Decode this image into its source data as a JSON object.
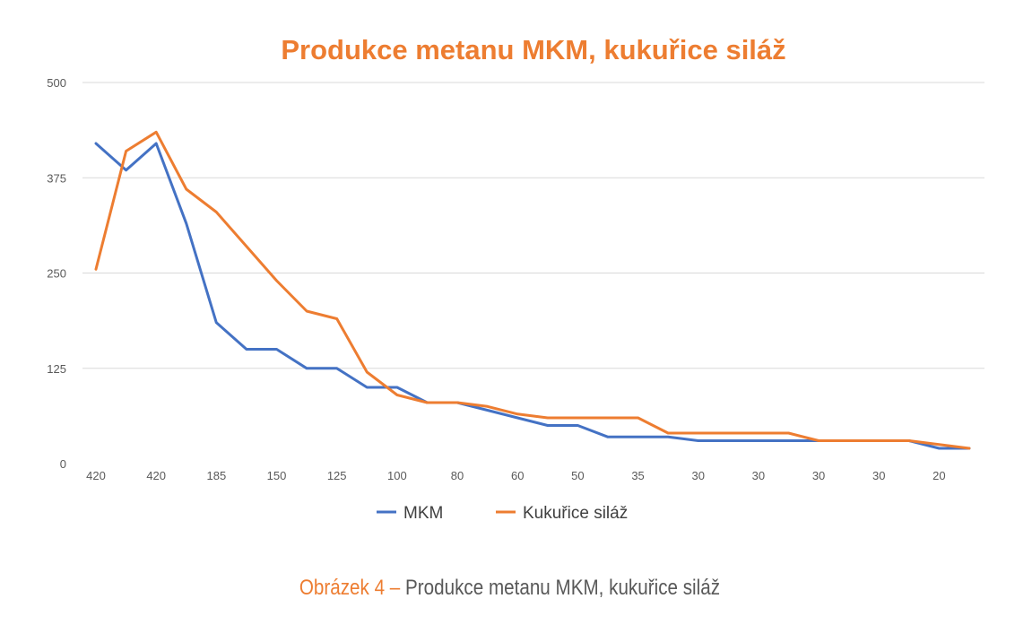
{
  "chart_data": {
    "type": "line",
    "title": "Produkce metanu MKM, kukuřice siláž",
    "xlabel": "",
    "ylabel": "",
    "ylim": [
      0,
      500
    ],
    "yticks": [
      0,
      125,
      250,
      375,
      500
    ],
    "grid": true,
    "legend_position": "bottom",
    "x_tick_labels": [
      "420",
      "420",
      "185",
      "150",
      "125",
      "100",
      "80",
      "60",
      "50",
      "35",
      "30",
      "30",
      "30",
      "30",
      "20"
    ],
    "series": [
      {
        "name": "MKM",
        "color": "#4472C4",
        "values": [
          420,
          385,
          420,
          315,
          185,
          150,
          150,
          125,
          125,
          100,
          100,
          80,
          80,
          70,
          60,
          50,
          50,
          35,
          35,
          35,
          30,
          30,
          30,
          30,
          30,
          30,
          30,
          30,
          20,
          20
        ]
      },
      {
        "name": "Kukuřice siláž",
        "color": "#ED7D31",
        "values": [
          255,
          410,
          435,
          360,
          330,
          285,
          240,
          200,
          190,
          120,
          90,
          80,
          80,
          75,
          65,
          60,
          60,
          60,
          60,
          40,
          40,
          40,
          40,
          40,
          30,
          30,
          30,
          30,
          25,
          20
        ]
      }
    ]
  },
  "caption": {
    "prefix": "Obrázek 4 –",
    "text": "Produkce metanu MKM, kukuřice siláž"
  }
}
